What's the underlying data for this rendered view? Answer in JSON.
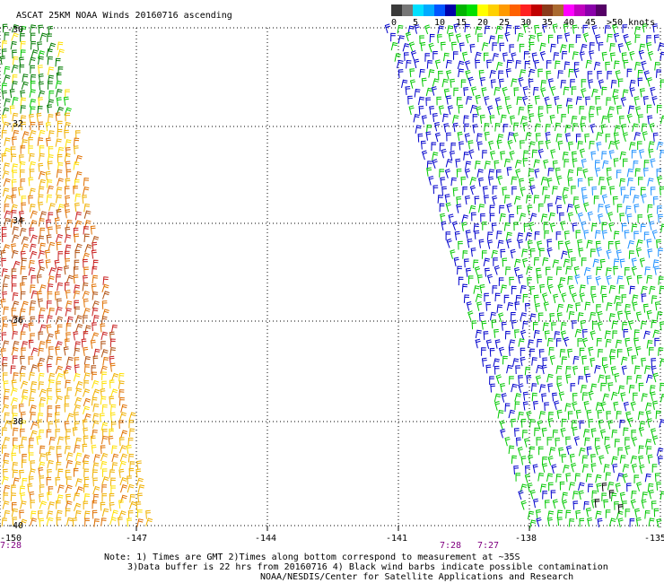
{
  "title": "ASCAT 25KM NOAA Winds 20160716 ascending",
  "colorbar": {
    "colors": [
      "#3a3a3a",
      "#777777",
      "#00e0ff",
      "#00aaff",
      "#0055ff",
      "#0000aa",
      "#00b400",
      "#00e000",
      "#ffff00",
      "#ffd000",
      "#ff9a00",
      "#ff6000",
      "#ff2020",
      "#c00000",
      "#8a3a1a",
      "#aa6a30",
      "#ff00ff",
      "#c000c0",
      "#8a00aa",
      "#550066"
    ],
    "ticks": [
      "0",
      "5",
      "10",
      "15",
      "20",
      "25",
      "30",
      "35",
      "40",
      "45",
      ">50 knots"
    ]
  },
  "axes": {
    "lat_labels": [
      "-30",
      "-32",
      "-34",
      "-36",
      "-38",
      "-40"
    ],
    "lon_labels": [
      "-150",
      "-147",
      "-144",
      "-141",
      "-138",
      "-135"
    ]
  },
  "times": {
    "left": "7:28",
    "mid_a": "7:28",
    "mid_b": "7:27"
  },
  "notes": {
    "line1": "Note: 1) Times are GMT 2)Times along bottom correspond to measurement at ~35S",
    "line2": "3)Data buffer is 22 hrs from 20160716 4) Black wind barbs indicate possible contamination",
    "line3": "NOAA/NESDIS/Center for Satellite Applications and Research"
  },
  "barb_colors": {
    "green": "#00c800",
    "dark_green": "#007a00",
    "blue": "#0000cc",
    "sky": "#1e90ff",
    "yellow": "#ffe000",
    "gold": "#f0b000",
    "orange": "#e07000",
    "brown": "#b05010",
    "red": "#c81e1e",
    "magenta": "#aa1060"
  }
}
